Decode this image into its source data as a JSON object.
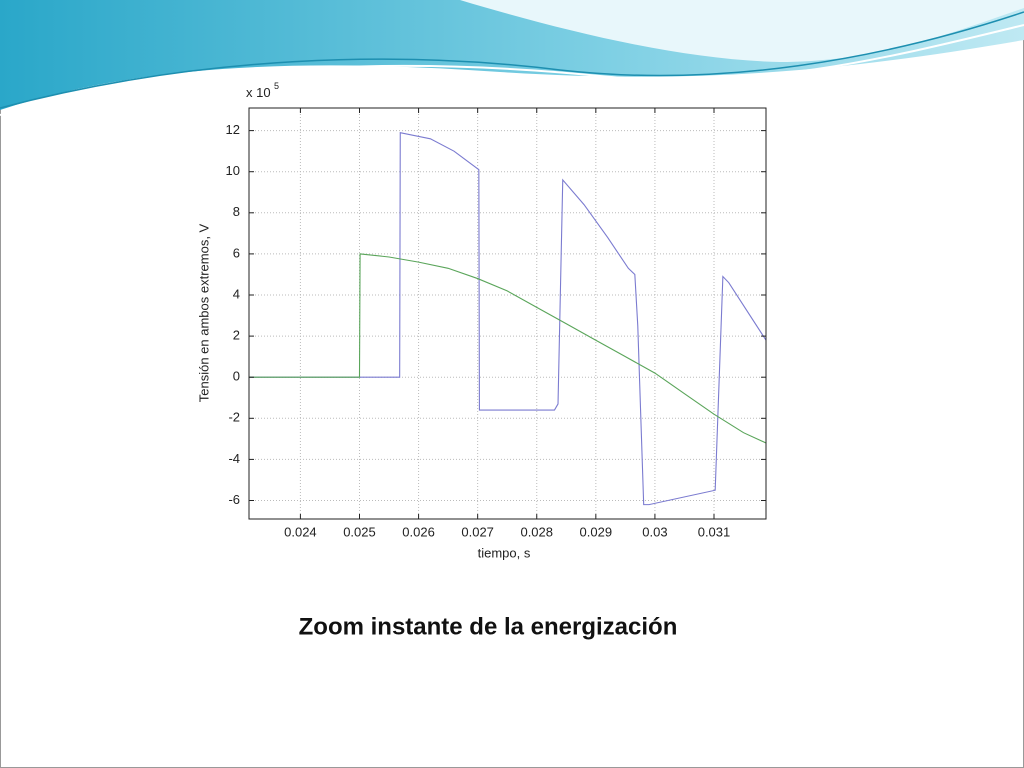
{
  "chart_data": {
    "type": "line",
    "title": "Zoom instante de la energización",
    "x_label": "tiempo, s",
    "y_label": "Tensión en ambos extremos, V",
    "y_multiplier": "x 10",
    "y_multiplier_exponent": 5,
    "xlim": [
      0.02313,
      0.03188
    ],
    "ylim": [
      -6.9,
      13.1
    ],
    "xticks": [
      0.024,
      0.025,
      0.026,
      0.027,
      0.028,
      0.029,
      0.03,
      0.031
    ],
    "yticks": [
      -6,
      -4,
      -2,
      0,
      2,
      4,
      6,
      8,
      10,
      12
    ],
    "grid": true,
    "series": [
      {
        "color": "#7b7bd0",
        "x": [
          0.02313,
          0.02568,
          0.02569,
          0.0262,
          0.0266,
          0.02702,
          0.02703,
          0.0283,
          0.02836,
          0.02844,
          0.0288,
          0.0292,
          0.02955,
          0.02966,
          0.02971,
          0.02981,
          0.0299,
          0.03102,
          0.03115,
          0.03125,
          0.03188
        ],
        "values": [
          0,
          0,
          11.9,
          11.6,
          11.0,
          10.1,
          -1.6,
          -1.6,
          -1.3,
          9.6,
          8.4,
          6.8,
          5.3,
          5.0,
          2.5,
          -6.2,
          -6.2,
          -5.5,
          4.9,
          4.6,
          1.8
        ]
      },
      {
        "color": "#5aa55a",
        "x": [
          0.02313,
          0.025,
          0.02501,
          0.0255,
          0.026,
          0.0265,
          0.027,
          0.0275,
          0.028,
          0.0285,
          0.029,
          0.0295,
          0.03,
          0.0305,
          0.031,
          0.0315,
          0.03188
        ],
        "values": [
          0,
          0,
          6.0,
          5.85,
          5.6,
          5.3,
          4.8,
          4.2,
          3.4,
          2.6,
          1.8,
          1.0,
          0.2,
          -0.8,
          -1.8,
          -2.7,
          -3.2
        ]
      }
    ]
  }
}
